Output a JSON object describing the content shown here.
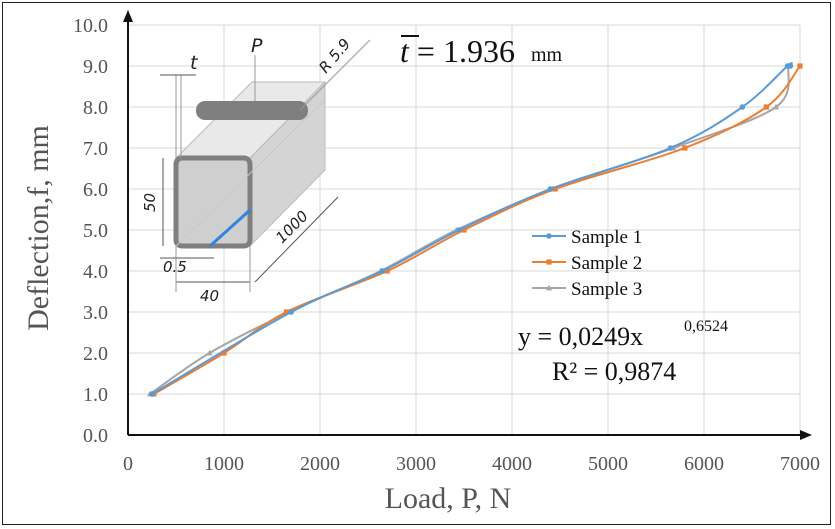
{
  "chart_data": {
    "type": "line",
    "xlabel": "Load, P, N",
    "ylabel": "Deflection,f, mm",
    "xlim": [
      0,
      7000
    ],
    "ylim": [
      0,
      10
    ],
    "x_ticks": [
      "0",
      "1000",
      "2000",
      "3000",
      "4000",
      "5000",
      "6000",
      "7000"
    ],
    "y_ticks": [
      "0.0",
      "1.0",
      "2.0",
      "3.0",
      "4.0",
      "5.0",
      "6.0",
      "7.0",
      "8.0",
      "9.0",
      "10.0"
    ],
    "grid": true,
    "legend_position": "right-middle",
    "series": [
      {
        "name": "Sample 1",
        "color": "#5b9bd5",
        "marker": "circle",
        "points": [
          [
            250,
            1.0
          ],
          [
            1700,
            3.0
          ],
          [
            2650,
            4.0
          ],
          [
            3450,
            5.0
          ],
          [
            4400,
            6.0
          ],
          [
            5650,
            7.0
          ],
          [
            6400,
            8.0
          ],
          [
            6870,
            9.0
          ],
          [
            6900,
            9.0
          ]
        ]
      },
      {
        "name": "Sample 2",
        "color": "#ed7d31",
        "marker": "square",
        "points": [
          [
            270,
            1.0
          ],
          [
            1000,
            2.0
          ],
          [
            1650,
            3.0
          ],
          [
            2700,
            4.0
          ],
          [
            3500,
            5.0
          ],
          [
            4450,
            6.0
          ],
          [
            5800,
            7.0
          ],
          [
            6650,
            8.0
          ],
          [
            7000,
            9.0
          ]
        ]
      },
      {
        "name": "Sample 3",
        "color": "#a5a5a5",
        "marker": "triangle",
        "points": [
          [
            230,
            1.0
          ],
          [
            850,
            2.0
          ],
          [
            1680,
            3.0
          ],
          [
            2630,
            4.0
          ],
          [
            3420,
            5.0
          ],
          [
            4420,
            6.0
          ],
          [
            5680,
            7.0
          ],
          [
            6750,
            8.0
          ],
          [
            6880,
            9.0
          ]
        ]
      }
    ],
    "annotations": {
      "fit_prefix": "y = 0,0249x",
      "fit_exponent": "0,6524",
      "r_squared": "R² = 0,9874",
      "mean_thickness_symbol": "t",
      "mean_thickness_value": " = 1.936",
      "mean_thickness_unit": "mm"
    },
    "inset": {
      "load_label": "P",
      "thickness_label": "t",
      "radius_label": "R 5.9",
      "height_label": "50",
      "width_label": "40",
      "length_label": "1000",
      "wall_label": "0.5"
    }
  }
}
